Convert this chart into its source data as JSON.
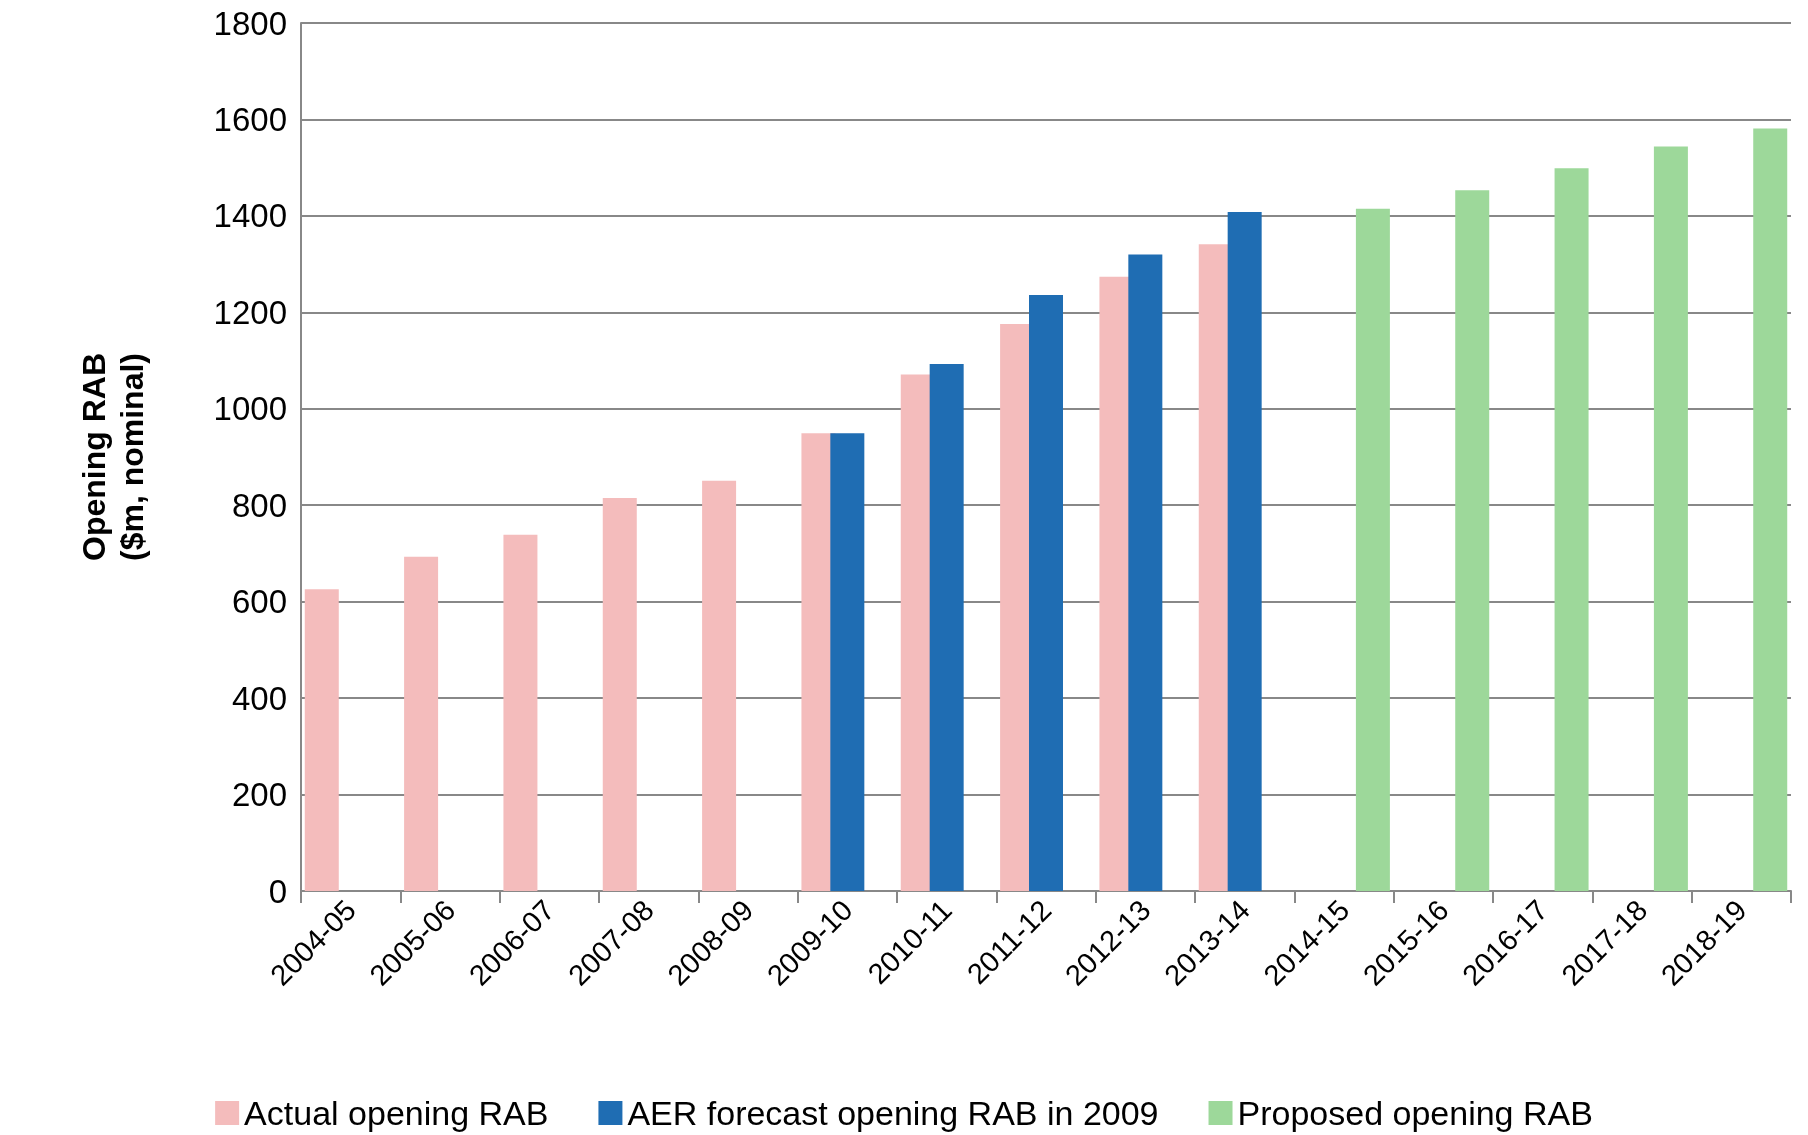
{
  "chart_data": {
    "type": "bar",
    "ylabel": "Opening RAB\n($m, nominal)",
    "categories": [
      "2004-05",
      "2005-06",
      "2006-07",
      "2007-08",
      "2008-09",
      "2009-10",
      "2010-11",
      "2011-12",
      "2012-13",
      "2013-14",
      "2014-15",
      "2015-16",
      "2016-17",
      "2017-18",
      "2018-19"
    ],
    "series": [
      {
        "name": "Actual opening RAB",
        "color": "#f4bcbc",
        "values": [
          626,
          693,
          739,
          815,
          851,
          949,
          1071,
          1176,
          1274,
          1341,
          null,
          null,
          null,
          null,
          null
        ]
      },
      {
        "name": "AER forecast opening RAB in 2009",
        "color": "#1f6db3",
        "values": [
          null,
          null,
          null,
          null,
          null,
          949,
          1093,
          1236,
          1320,
          1408,
          null,
          null,
          null,
          null,
          null
        ]
      },
      {
        "name": "Proposed opening RAB",
        "color": "#9dd89a",
        "values": [
          null,
          null,
          null,
          null,
          null,
          null,
          null,
          null,
          null,
          null,
          1415,
          1453,
          1499,
          1544,
          1581
        ]
      }
    ],
    "ylim": [
      0,
      1800
    ],
    "yticks": [
      0,
      200,
      400,
      600,
      800,
      1000,
      1200,
      1400,
      1600,
      1800
    ],
    "grid": "y",
    "legend": "bottom"
  }
}
